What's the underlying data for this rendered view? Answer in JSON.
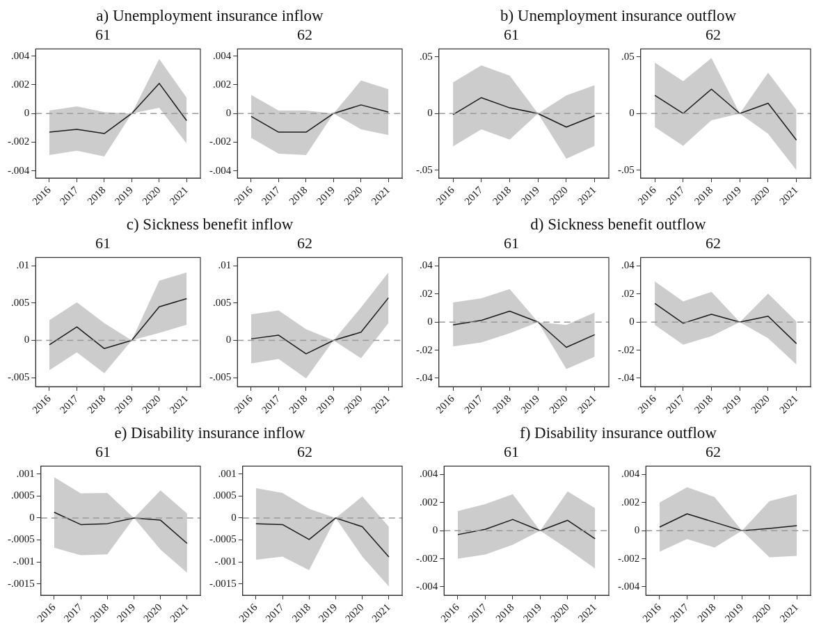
{
  "chart_data": [
    {
      "type": "line",
      "title": "a) Unemployment insurance inflow",
      "subtitle": "61",
      "categories": [
        "2016",
        "2017",
        "2018",
        "2019",
        "2020",
        "2021"
      ],
      "series": [
        {
          "color": "#1a1a1a",
          "values": [
            -0.0013,
            -0.0011,
            -0.0014,
            0,
            0.0021,
            -0.0005
          ],
          "lower": [
            -0.0029,
            -0.0026,
            -0.003,
            0,
            0.0004,
            -0.0021
          ],
          "upper": [
            0.0002,
            0.0005,
            0.0001,
            0,
            0.0038,
            0.0011
          ]
        }
      ],
      "ylim": [
        -0.0045,
        0.0045
      ],
      "yticks": [
        {
          "value": -0.004,
          "label": "-.004"
        },
        {
          "value": -0.002,
          "label": "-.002"
        },
        {
          "value": 0,
          "label": "0"
        },
        {
          "value": 0.002,
          "label": ".002"
        },
        {
          "value": 0.004,
          "label": ".004"
        }
      ],
      "ref_lines": [
        {
          "axis": "y",
          "value": 0,
          "color": "#999999",
          "line_style": "dashed"
        }
      ]
    },
    {
      "type": "line",
      "subtitle": "62",
      "categories": [
        "2016",
        "2017",
        "2018",
        "2019",
        "2020",
        "2021"
      ],
      "series": [
        {
          "color": "#1a1a1a",
          "values": [
            -0.0002,
            -0.0013,
            -0.0013,
            0,
            0.0006,
            0.0001
          ],
          "lower": [
            -0.0017,
            -0.0028,
            -0.0029,
            0,
            -0.0011,
            -0.0015
          ],
          "upper": [
            0.0013,
            0.0002,
            0.0002,
            0,
            0.0023,
            0.0017
          ]
        }
      ],
      "ylim": [
        -0.0045,
        0.0045
      ],
      "yticks": [
        {
          "value": -0.004,
          "label": "-.004"
        },
        {
          "value": -0.002,
          "label": "-.002"
        },
        {
          "value": 0,
          "label": "0"
        },
        {
          "value": 0.002,
          "label": ".002"
        },
        {
          "value": 0.004,
          "label": ".004"
        }
      ],
      "ref_lines": [
        {
          "axis": "y",
          "value": 0,
          "color": "#999999",
          "line_style": "dashed"
        }
      ]
    },
    {
      "type": "line",
      "title": "b) Unemployment insurance outflow",
      "subtitle": "61",
      "categories": [
        "2016",
        "2017",
        "2018",
        "2019",
        "2020",
        "2021"
      ],
      "series": [
        {
          "color": "#1a1a1a",
          "values": [
            -0.001,
            0.014,
            0.005,
            0,
            -0.012,
            -0.002
          ],
          "lower": [
            -0.029,
            -0.014,
            -0.023,
            0,
            -0.04,
            -0.0285
          ],
          "upper": [
            0.0275,
            0.0425,
            0.0335,
            0,
            0.016,
            0.025
          ]
        }
      ],
      "ylim": [
        -0.057,
        0.057
      ],
      "yticks": [
        {
          "value": -0.05,
          "label": "-.05"
        },
        {
          "value": 0,
          "label": "0"
        },
        {
          "value": 0.05,
          "label": ".05"
        }
      ],
      "ref_lines": [
        {
          "axis": "y",
          "value": 0,
          "color": "#999999",
          "line_style": "dashed"
        }
      ]
    },
    {
      "type": "line",
      "subtitle": "62",
      "categories": [
        "2016",
        "2017",
        "2018",
        "2019",
        "2020",
        "2021"
      ],
      "series": [
        {
          "color": "#1a1a1a",
          "values": [
            0.016,
            0,
            0.0215,
            0,
            0.009,
            -0.0235
          ],
          "lower": [
            -0.012,
            -0.0285,
            -0.006,
            0,
            -0.018,
            -0.05
          ],
          "upper": [
            0.045,
            0.0285,
            0.049,
            0,
            0.036,
            0.003
          ]
        }
      ],
      "ylim": [
        -0.057,
        0.057
      ],
      "yticks": [
        {
          "value": -0.05,
          "label": "-.05"
        },
        {
          "value": 0,
          "label": "0"
        },
        {
          "value": 0.05,
          "label": ".05"
        }
      ],
      "ref_lines": [
        {
          "axis": "y",
          "value": 0,
          "color": "#999999",
          "line_style": "dashed"
        }
      ]
    },
    {
      "type": "line",
      "title": "c) Sickness benefit inflow",
      "subtitle": "61",
      "categories": [
        "2016",
        "2017",
        "2018",
        "2019",
        "2020",
        "2021"
      ],
      "series": [
        {
          "color": "#1a1a1a",
          "values": [
            -0.0006,
            0.0018,
            -0.0011,
            0,
            0.0045,
            0.0056
          ],
          "lower": [
            -0.004,
            -0.0016,
            -0.0044,
            0,
            0.001,
            0.0021
          ],
          "upper": [
            0.0027,
            0.0051,
            0.0023,
            0,
            0.008,
            0.0091
          ]
        }
      ],
      "ylim": [
        -0.0062,
        0.0111
      ],
      "yticks": [
        {
          "value": -0.005,
          "label": "-.005"
        },
        {
          "value": 0,
          "label": "0"
        },
        {
          "value": 0.005,
          "label": ".005"
        },
        {
          "value": 0.01,
          "label": ".01"
        }
      ],
      "ref_lines": [
        {
          "axis": "y",
          "value": 0,
          "color": "#999999",
          "line_style": "dashed"
        }
      ]
    },
    {
      "type": "line",
      "subtitle": "62",
      "categories": [
        "2016",
        "2017",
        "2018",
        "2019",
        "2020",
        "2021"
      ],
      "series": [
        {
          "color": "#1a1a1a",
          "values": [
            0.0002,
            0.0007,
            -0.0018,
            0,
            0.0011,
            0.0057
          ],
          "lower": [
            -0.0031,
            -0.0025,
            -0.0051,
            0,
            -0.0024,
            0.0023
          ],
          "upper": [
            0.0035,
            0.004,
            0.0015,
            0,
            0.0044,
            0.0091
          ]
        }
      ],
      "ylim": [
        -0.0062,
        0.0111
      ],
      "yticks": [
        {
          "value": -0.005,
          "label": "-.005"
        },
        {
          "value": 0,
          "label": "0"
        },
        {
          "value": 0.005,
          "label": ".005"
        },
        {
          "value": 0.01,
          "label": ".01"
        }
      ],
      "ref_lines": [
        {
          "axis": "y",
          "value": 0,
          "color": "#999999",
          "line_style": "dashed"
        }
      ]
    },
    {
      "type": "line",
      "title": "d) Sickness benefit outflow",
      "subtitle": "61",
      "categories": [
        "2016",
        "2017",
        "2018",
        "2019",
        "2020",
        "2021"
      ],
      "series": [
        {
          "color": "#1a1a1a",
          "values": [
            -0.002,
            0.0012,
            0.0078,
            0,
            -0.018,
            -0.009
          ],
          "lower": [
            -0.0173,
            -0.0145,
            -0.008,
            0,
            -0.0334,
            -0.0247
          ],
          "upper": [
            0.014,
            0.017,
            0.0235,
            0,
            -0.002,
            0.0068
          ]
        }
      ],
      "ylim": [
        -0.046,
        0.046
      ],
      "yticks": [
        {
          "value": -0.04,
          "label": "-.04"
        },
        {
          "value": -0.02,
          "label": "-.02"
        },
        {
          "value": 0,
          "label": "0"
        },
        {
          "value": 0.02,
          "label": ".02"
        },
        {
          "value": 0.04,
          "label": ".04"
        }
      ],
      "ref_lines": [
        {
          "axis": "y",
          "value": 0,
          "color": "#999999",
          "line_style": "dashed"
        }
      ]
    },
    {
      "type": "line",
      "subtitle": "62",
      "categories": [
        "2016",
        "2017",
        "2018",
        "2019",
        "2020",
        "2021"
      ],
      "series": [
        {
          "color": "#1a1a1a",
          "values": [
            0.0133,
            -0.0008,
            0.0056,
            0,
            0.0042,
            -0.0153
          ],
          "lower": [
            -0.002,
            -0.0161,
            -0.01,
            0,
            -0.0115,
            -0.0302
          ],
          "upper": [
            0.029,
            0.0147,
            0.0215,
            0,
            0.0203,
            0.0004
          ]
        }
      ],
      "ylim": [
        -0.046,
        0.046
      ],
      "yticks": [
        {
          "value": -0.04,
          "label": "-.04"
        },
        {
          "value": -0.02,
          "label": "-.02"
        },
        {
          "value": 0,
          "label": "0"
        },
        {
          "value": 0.02,
          "label": ".02"
        },
        {
          "value": 0.04,
          "label": ".04"
        }
      ],
      "ref_lines": [
        {
          "axis": "y",
          "value": 0,
          "color": "#999999",
          "line_style": "dashed"
        }
      ]
    },
    {
      "type": "line",
      "title": "e) Disability insurance inflow",
      "subtitle": "61",
      "categories": [
        "2016",
        "2017",
        "2018",
        "2019",
        "2020",
        "2021"
      ],
      "series": [
        {
          "color": "#1a1a1a",
          "values": [
            0.00013,
            -0.00015,
            -0.00013,
            0,
            -5e-05,
            -0.00058
          ],
          "lower": [
            -0.00068,
            -0.00085,
            -0.00083,
            0,
            -0.00072,
            -0.00125
          ],
          "upper": [
            0.00093,
            0.00056,
            0.00057,
            0,
            0.00063,
            0.0001
          ]
        }
      ],
      "ylim": [
        -0.00176,
        0.00118
      ],
      "yticks": [
        {
          "value": -0.0015,
          "label": "-.0015"
        },
        {
          "value": -0.001,
          "label": "-.001"
        },
        {
          "value": -0.0005,
          "label": "-.0005"
        },
        {
          "value": 0,
          "label": "0"
        },
        {
          "value": 0.0005,
          "label": ".0005"
        },
        {
          "value": 0.001,
          "label": ".001"
        }
      ],
      "ref_lines": [
        {
          "axis": "y",
          "value": 0,
          "color": "#999999",
          "line_style": "dashed"
        }
      ]
    },
    {
      "type": "line",
      "subtitle": "62",
      "categories": [
        "2016",
        "2017",
        "2018",
        "2019",
        "2020",
        "2021"
      ],
      "series": [
        {
          "color": "#1a1a1a",
          "values": [
            -0.00013,
            -0.00015,
            -0.00049,
            0,
            -0.0002,
            -0.00089
          ],
          "lower": [
            -0.00095,
            -0.00088,
            -0.00119,
            0,
            -0.00088,
            -0.00156
          ],
          "upper": [
            0.00068,
            0.00057,
            0.00021,
            0,
            0.00049,
            -0.0002
          ]
        }
      ],
      "ylim": [
        -0.00176,
        0.00118
      ],
      "yticks": [
        {
          "value": -0.0015,
          "label": "-.0015"
        },
        {
          "value": -0.001,
          "label": "-.001"
        },
        {
          "value": -0.0005,
          "label": "-.0005"
        },
        {
          "value": 0,
          "label": "0"
        },
        {
          "value": 0.0005,
          "label": ".0005"
        },
        {
          "value": 0.001,
          "label": ".001"
        }
      ],
      "ref_lines": [
        {
          "axis": "y",
          "value": 0,
          "color": "#999999",
          "line_style": "dashed"
        }
      ]
    },
    {
      "type": "line",
      "title": "f) Disability insurance outflow",
      "subtitle": "61",
      "categories": [
        "2016",
        "2017",
        "2018",
        "2019",
        "2020",
        "2021"
      ],
      "series": [
        {
          "color": "#1a1a1a",
          "values": [
            -0.00028,
            0.0001,
            0.0008,
            0,
            0.00074,
            -0.00058
          ],
          "lower": [
            -0.002,
            -0.0017,
            -0.001,
            0,
            -0.0013,
            -0.0027
          ],
          "upper": [
            0.0014,
            0.0019,
            0.0026,
            0,
            0.0028,
            0.0016
          ]
        }
      ],
      "ylim": [
        -0.0046,
        0.0046
      ],
      "yticks": [
        {
          "value": -0.004,
          "label": "-.004"
        },
        {
          "value": -0.002,
          "label": "-.002"
        },
        {
          "value": 0,
          "label": "0"
        },
        {
          "value": 0.002,
          "label": ".002"
        },
        {
          "value": 0.004,
          "label": ".004"
        }
      ],
      "ref_lines": [
        {
          "axis": "y",
          "value": 0,
          "color": "#999999",
          "line_style": "dashed"
        }
      ]
    },
    {
      "type": "line",
      "subtitle": "62",
      "categories": [
        "2016",
        "2017",
        "2018",
        "2019",
        "2020",
        "2021"
      ],
      "series": [
        {
          "color": "#1a1a1a",
          "values": [
            0.00026,
            0.0012,
            0.0006,
            0,
            0.00016,
            0.00036
          ],
          "lower": [
            -0.0015,
            -0.0006,
            -0.0012,
            0,
            -0.0019,
            -0.0018
          ],
          "upper": [
            0.002,
            0.0031,
            0.0024,
            0,
            0.0021,
            0.0026
          ]
        }
      ],
      "ylim": [
        -0.0046,
        0.0046
      ],
      "yticks": [
        {
          "value": -0.004,
          "label": "-.004"
        },
        {
          "value": -0.002,
          "label": "-.002"
        },
        {
          "value": 0,
          "label": "0"
        },
        {
          "value": 0.002,
          "label": ".002"
        },
        {
          "value": 0.004,
          "label": ".004"
        }
      ],
      "ref_lines": [
        {
          "axis": "y",
          "value": 0,
          "color": "#999999",
          "line_style": "dashed"
        }
      ]
    }
  ]
}
